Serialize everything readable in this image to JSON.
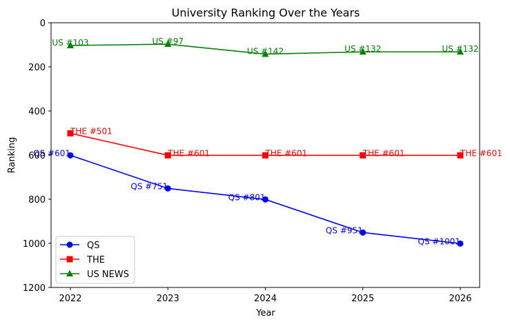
{
  "chart_data": {
    "type": "line",
    "title": "University Ranking Over the Years",
    "xlabel": "Year",
    "ylabel": "Ranking",
    "x": [
      2022,
      2023,
      2024,
      2025,
      2026
    ],
    "xticks": [
      "2022",
      "2023",
      "2024",
      "2025",
      "2026"
    ],
    "ylim": [
      0,
      1200
    ],
    "y_inverted": true,
    "yticks": [
      0,
      200,
      400,
      600,
      800,
      1000,
      1200
    ],
    "grid": false,
    "legend_position": "lower-left",
    "series": [
      {
        "name": "QS",
        "color": "#0000ff",
        "marker": "circle",
        "values": [
          601,
          751,
          801,
          951,
          1001
        ],
        "labels": [
          "QS #601",
          "QS #751",
          "QS #801",
          "QS #951",
          "QS #1001"
        ]
      },
      {
        "name": "THE",
        "color": "#ff0000",
        "marker": "square",
        "values": [
          501,
          601,
          601,
          601,
          601
        ],
        "labels": [
          "THE #501",
          "THE #601",
          "THE #601",
          "THE #601",
          "THE #601"
        ]
      },
      {
        "name": "US NEWS",
        "color": "#008000",
        "marker": "triangle",
        "values": [
          103,
          97,
          142,
          132,
          132
        ],
        "labels": [
          "US #103",
          "US #97",
          "US #142",
          "US #132",
          "US #132"
        ]
      }
    ]
  }
}
